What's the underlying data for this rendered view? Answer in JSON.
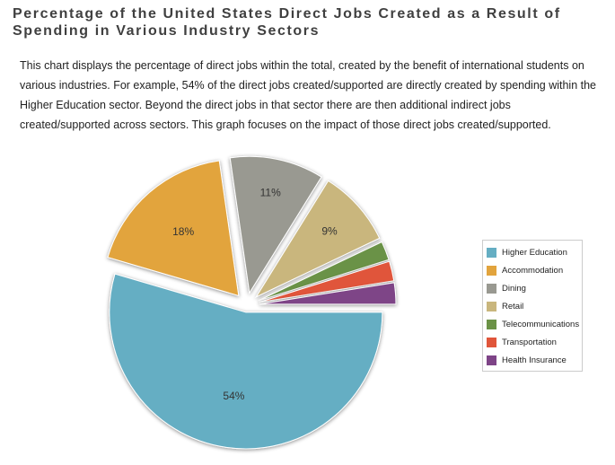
{
  "title": "Percentage of the United States Direct Jobs Created as a Result of Spending in Various Industry Sectors",
  "description": "This chart displays the percentage of direct jobs within the total, created by the benefit of international students on various industries. For example, 54% of the direct jobs created/supported are directly created by spending within the Higher Education sector. Beyond the direct jobs in that sector there are then additional indirect jobs created/supported across sectors. This graph focuses on the impact of those direct jobs created/supported.",
  "chart_data": {
    "type": "pie",
    "slices": [
      {
        "name": "Higher Education",
        "value": 54,
        "label": "54%",
        "color": "#65aec3"
      },
      {
        "name": "Accommodation",
        "value": 18,
        "label": "18%",
        "color": "#e2a43d"
      },
      {
        "name": "Dining",
        "value": 11,
        "label": "11%",
        "color": "#999991"
      },
      {
        "name": "Retail",
        "value": 9,
        "label": "9%",
        "color": "#c9b67d"
      },
      {
        "name": "Telecommunications",
        "value": 2.2,
        "label": "",
        "color": "#6b9246"
      },
      {
        "name": "Transportation",
        "value": 2.3,
        "label": "",
        "color": "#e0553a"
      },
      {
        "name": "Health Insurance",
        "value": 2.5,
        "label": "",
        "color": "#7e4487"
      }
    ],
    "legend_position": "right"
  }
}
